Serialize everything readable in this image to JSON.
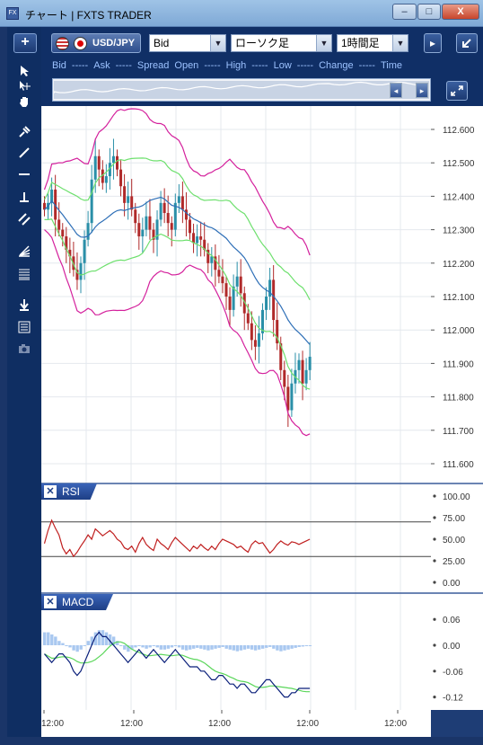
{
  "window": {
    "icon_label": "FX",
    "title": "チャート | FXTS TRADER",
    "minimize": "–",
    "maximize": "□",
    "close": "X"
  },
  "header": {
    "add_label": "+",
    "symbol": "USD/JPY",
    "price_type": "Bid",
    "chart_type": "ローソク足",
    "timeframe": "1時間足",
    "quote_fields": [
      {
        "label": "Bid",
        "value": "-----"
      },
      {
        "label": "Ask",
        "value": "-----"
      },
      {
        "label": "Spread",
        "value": ""
      },
      {
        "label": "Open",
        "value": "-----"
      },
      {
        "label": "High",
        "value": "-----"
      },
      {
        "label": "Low",
        "value": "-----"
      },
      {
        "label": "Change",
        "value": "-----"
      },
      {
        "label": "Time",
        "value": ""
      }
    ]
  },
  "price_axis": {
    "ticks": [
      "112.600",
      "112.500",
      "112.400",
      "112.300",
      "112.200",
      "112.100",
      "112.000",
      "111.900",
      "111.800",
      "111.700",
      "111.600"
    ]
  },
  "rsi": {
    "label": "RSI",
    "ticks": [
      "100.00",
      "75.00",
      "50.00",
      "25.00",
      "0.00"
    ]
  },
  "macd": {
    "label": "MACD",
    "ticks": [
      "0.06",
      "0.00",
      "-0.06",
      "-0.12"
    ]
  },
  "time_axis": {
    "ticks": [
      "12:00",
      "12:00",
      "12:00",
      "12:00",
      "12:00"
    ]
  },
  "colors": {
    "up": "#2a8fa8",
    "down": "#b02a2a",
    "bb_outer": "#d4209c",
    "bb_inner": "#6ee06e",
    "ma": "#2e6fb7",
    "rsi_line": "#c02020",
    "macd_line": "#0a1f7a",
    "signal_line": "#5ad65a",
    "hist": "#a9c8f0"
  }
}
